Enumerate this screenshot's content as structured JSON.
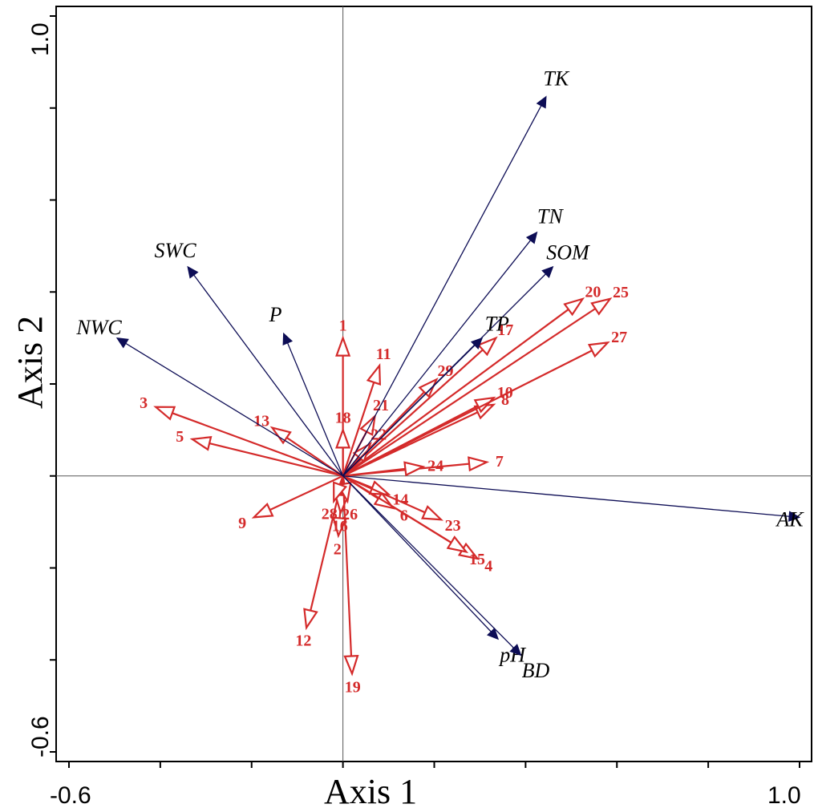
{
  "chart_data": {
    "type": "biplot",
    "title": "",
    "xlabel": "Axis 1",
    "ylabel": "Axis 2",
    "xlim": [
      -0.6,
      1.0
    ],
    "ylim": [
      -0.6,
      1.0
    ],
    "x_tick_labels": [
      "-0.6",
      "1.0"
    ],
    "y_tick_labels": [
      "1.0",
      "-0.6"
    ],
    "grid": false,
    "colors": {
      "environment": "#0d0d55",
      "species": "#d42a2a"
    },
    "environment_vectors": [
      {
        "name": "TK",
        "x": 0.445,
        "y": 0.825
      },
      {
        "name": "TN",
        "x": 0.425,
        "y": 0.53
      },
      {
        "name": "SOM",
        "x": 0.46,
        "y": 0.455
      },
      {
        "name": "TP",
        "x": 0.305,
        "y": 0.3
      },
      {
        "name": "SWC",
        "x": -0.34,
        "y": 0.455
      },
      {
        "name": "P",
        "x": -0.13,
        "y": 0.31
      },
      {
        "name": "NWC",
        "x": -0.495,
        "y": 0.3
      },
      {
        "name": "AK",
        "x": 1.0,
        "y": -0.09
      },
      {
        "name": "pH",
        "x": 0.34,
        "y": -0.355
      },
      {
        "name": "BD",
        "x": 0.39,
        "y": -0.39
      }
    ],
    "species_vectors": [
      {
        "name": "1",
        "x": 0.0,
        "y": 0.3
      },
      {
        "name": "2",
        "x": -0.01,
        "y": -0.13
      },
      {
        "name": "3",
        "x": -0.41,
        "y": 0.15
      },
      {
        "name": "4",
        "x": 0.295,
        "y": -0.18
      },
      {
        "name": "5",
        "x": -0.33,
        "y": 0.08
      },
      {
        "name": "6",
        "x": 0.11,
        "y": -0.07
      },
      {
        "name": "7",
        "x": 0.315,
        "y": 0.03
      },
      {
        "name": "8",
        "x": 0.33,
        "y": 0.155
      },
      {
        "name": "9",
        "x": -0.195,
        "y": -0.09
      },
      {
        "name": "10",
        "x": 0.33,
        "y": 0.17
      },
      {
        "name": "11",
        "x": 0.08,
        "y": 0.24
      },
      {
        "name": "12",
        "x": -0.08,
        "y": -0.33
      },
      {
        "name": "13",
        "x": -0.155,
        "y": 0.105
      },
      {
        "name": "14",
        "x": 0.1,
        "y": -0.04
      },
      {
        "name": "15",
        "x": 0.27,
        "y": -0.165
      },
      {
        "name": "16",
        "x": -0.005,
        "y": -0.08
      },
      {
        "name": "17",
        "x": 0.335,
        "y": 0.3
      },
      {
        "name": "18",
        "x": 0.0,
        "y": 0.1
      },
      {
        "name": "19",
        "x": 0.02,
        "y": -0.43
      },
      {
        "name": "20",
        "x": 0.525,
        "y": 0.385
      },
      {
        "name": "21",
        "x": 0.07,
        "y": 0.13
      },
      {
        "name": "22",
        "x": 0.06,
        "y": 0.07
      },
      {
        "name": "23",
        "x": 0.215,
        "y": -0.095
      },
      {
        "name": "24",
        "x": 0.175,
        "y": 0.02
      },
      {
        "name": "25",
        "x": 0.585,
        "y": 0.385
      },
      {
        "name": "26",
        "x": 0.01,
        "y": -0.055
      },
      {
        "name": "27",
        "x": 0.58,
        "y": 0.29
      },
      {
        "name": "28",
        "x": -0.02,
        "y": -0.055
      },
      {
        "name": "29",
        "x": 0.205,
        "y": 0.21
      }
    ]
  }
}
